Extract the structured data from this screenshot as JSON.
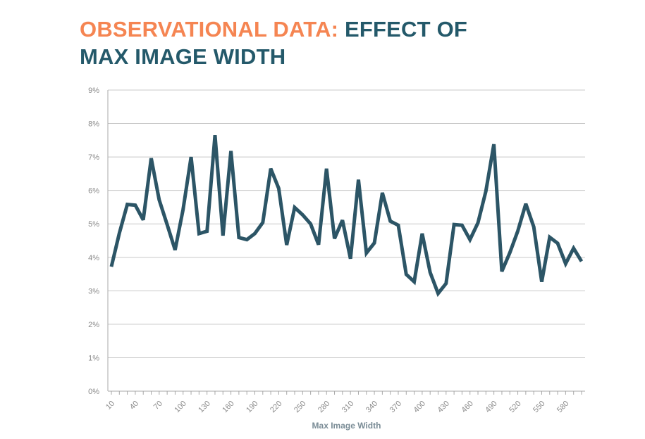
{
  "title": {
    "accent": "OBSERVATIONAL DATA:",
    "main_line1": "EFFECT OF",
    "main_line2": "MAX IMAGE WIDTH"
  },
  "colors": {
    "title_accent": "#F58552",
    "title_main": "#24596A",
    "series_line": "#2C5566",
    "gridline": "#c8c8c8",
    "tick_text": "#8a8a8a"
  },
  "chart_data": {
    "type": "line",
    "title": "",
    "xlabel": "Max Image Width",
    "ylabel": "",
    "ylim": [
      0,
      9
    ],
    "y_ticks": [
      "0%",
      "1%",
      "2%",
      "3%",
      "4%",
      "5%",
      "6%",
      "7%",
      "8%",
      "9%"
    ],
    "x_ticks": [
      "10",
      "40",
      "70",
      "100",
      "130",
      "160",
      "190",
      "220",
      "250",
      "280",
      "310",
      "340",
      "370",
      "400",
      "430",
      "460",
      "490",
      "520",
      "550",
      "580"
    ],
    "grid": true,
    "legend": "none",
    "x": [
      10,
      20,
      30,
      40,
      50,
      60,
      70,
      80,
      90,
      100,
      110,
      120,
      130,
      140,
      150,
      160,
      170,
      180,
      190,
      200,
      210,
      220,
      230,
      240,
      250,
      260,
      270,
      280,
      290,
      300,
      310,
      320,
      330,
      340,
      350,
      360,
      370,
      380,
      390,
      400,
      410,
      420,
      430,
      440,
      450,
      460,
      470,
      480,
      490,
      500,
      510,
      520,
      530,
      540,
      550,
      560,
      570,
      580,
      590,
      600
    ],
    "series": [
      {
        "values": [
          3.72,
          4.72,
          5.58,
          5.56,
          5.12,
          6.96,
          5.72,
          4.98,
          4.22,
          5.43,
          7.0,
          4.71,
          4.78,
          7.65,
          4.65,
          7.18,
          4.59,
          4.53,
          4.71,
          5.04,
          6.65,
          6.06,
          4.37,
          5.49,
          5.27,
          5.0,
          4.38,
          6.65,
          4.56,
          5.11,
          3.96,
          6.32,
          4.13,
          4.43,
          5.93,
          5.08,
          4.96,
          3.49,
          3.27,
          4.71,
          3.55,
          2.92,
          3.22,
          4.98,
          4.96,
          4.53,
          5.03,
          5.98,
          7.38,
          3.58,
          4.14,
          4.79,
          5.6,
          4.91,
          3.27,
          4.6,
          4.42,
          3.81,
          4.27,
          3.88
        ]
      }
    ]
  }
}
